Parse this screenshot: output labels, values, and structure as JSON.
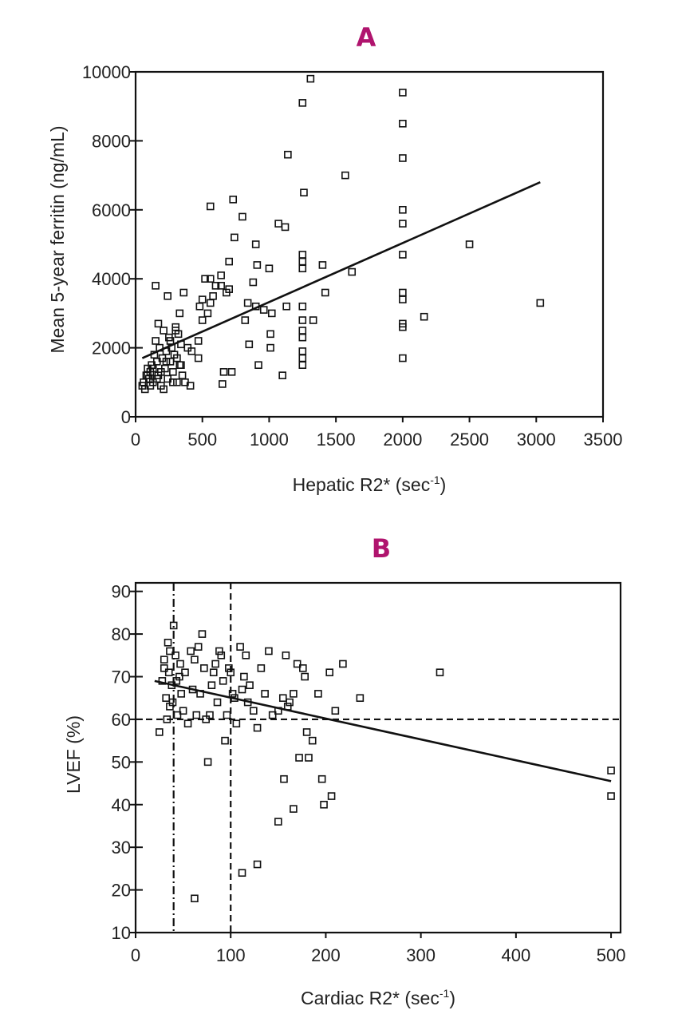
{
  "colors": {
    "panel_title": "#b0146e",
    "ink": "#111111"
  },
  "chart_data": [
    {
      "type": "scatter",
      "panel": "A",
      "title": "A",
      "xlabel": "Hepatic R2* (sec",
      "xlabel_sup": "-1",
      "xlabel_end": ")",
      "ylabel": "Mean 5-year ferritin (ng/mL)",
      "xlim": [
        0,
        3500
      ],
      "ylim": [
        0,
        10000
      ],
      "xticks": [
        0,
        500,
        1000,
        1500,
        2000,
        2500,
        3000,
        3500
      ],
      "yticks": [
        0,
        2000,
        4000,
        6000,
        8000,
        10000
      ],
      "grid": false,
      "fit_line": [
        [
          50,
          1700
        ],
        [
          3030,
          6800
        ]
      ],
      "points": [
        [
          50,
          900
        ],
        [
          60,
          1000
        ],
        [
          70,
          800
        ],
        [
          80,
          1200
        ],
        [
          90,
          1400
        ],
        [
          100,
          1100
        ],
        [
          110,
          1300
        ],
        [
          120,
          1500
        ],
        [
          130,
          1000
        ],
        [
          140,
          1800
        ],
        [
          150,
          2200
        ],
        [
          160,
          1600
        ],
        [
          170,
          1200
        ],
        [
          180,
          2000
        ],
        [
          190,
          900
        ],
        [
          200,
          1700
        ],
        [
          210,
          2500
        ],
        [
          220,
          1400
        ],
        [
          230,
          1900
        ],
        [
          240,
          1100
        ],
        [
          250,
          2300
        ],
        [
          260,
          1600
        ],
        [
          270,
          2000
        ],
        [
          280,
          1300
        ],
        [
          290,
          1800
        ],
        [
          300,
          2600
        ],
        [
          310,
          1000
        ],
        [
          320,
          2400
        ],
        [
          330,
          1500
        ],
        [
          340,
          2100
        ],
        [
          350,
          1200
        ],
        [
          360,
          3600
        ],
        [
          150,
          3800
        ],
        [
          170,
          2700
        ],
        [
          240,
          3500
        ],
        [
          300,
          2500
        ],
        [
          330,
          3000
        ],
        [
          390,
          2000
        ],
        [
          410,
          900
        ],
        [
          470,
          2200
        ],
        [
          480,
          3200
        ],
        [
          500,
          3400
        ],
        [
          520,
          4000
        ],
        [
          540,
          3000
        ],
        [
          560,
          4000
        ],
        [
          580,
          3500
        ],
        [
          640,
          3800
        ],
        [
          660,
          1300
        ],
        [
          650,
          950
        ],
        [
          700,
          4500
        ],
        [
          720,
          1300
        ],
        [
          740,
          5200
        ],
        [
          560,
          6100
        ],
        [
          730,
          6300
        ],
        [
          800,
          5800
        ],
        [
          840,
          3300
        ],
        [
          850,
          2100
        ],
        [
          880,
          3900
        ],
        [
          900,
          5000
        ],
        [
          910,
          4400
        ],
        [
          920,
          1500
        ],
        [
          1000,
          4300
        ],
        [
          1010,
          2000
        ],
        [
          1020,
          3000
        ],
        [
          1070,
          5600
        ],
        [
          1100,
          1200
        ],
        [
          1120,
          5500
        ],
        [
          1130,
          3200
        ],
        [
          1140,
          7600
        ],
        [
          1250,
          9100
        ],
        [
          1260,
          6500
        ],
        [
          1250,
          4700
        ],
        [
          1250,
          4500
        ],
        [
          1250,
          4300
        ],
        [
          1250,
          3200
        ],
        [
          1250,
          2800
        ],
        [
          1250,
          2500
        ],
        [
          1250,
          2300
        ],
        [
          1250,
          1900
        ],
        [
          1250,
          1700
        ],
        [
          1250,
          1500
        ],
        [
          1310,
          9800
        ],
        [
          1330,
          2800
        ],
        [
          1400,
          4400
        ],
        [
          1420,
          3600
        ],
        [
          1570,
          7000
        ],
        [
          1620,
          4200
        ],
        [
          2000,
          9400
        ],
        [
          2000,
          8500
        ],
        [
          2000,
          7500
        ],
        [
          2000,
          6000
        ],
        [
          2000,
          5600
        ],
        [
          2000,
          4700
        ],
        [
          2000,
          3600
        ],
        [
          2000,
          3400
        ],
        [
          2000,
          2700
        ],
        [
          2000,
          2600
        ],
        [
          2000,
          1700
        ],
        [
          2160,
          2900
        ],
        [
          2500,
          5000
        ],
        [
          3030,
          3300
        ],
        [
          90,
          1200
        ],
        [
          110,
          900
        ],
        [
          130,
          1400
        ],
        [
          160,
          1100
        ],
        [
          190,
          1300
        ],
        [
          210,
          800
        ],
        [
          230,
          1600
        ],
        [
          260,
          2200
        ],
        [
          280,
          1000
        ],
        [
          310,
          1700
        ],
        [
          340,
          1500
        ],
        [
          370,
          1000
        ],
        [
          420,
          1900
        ],
        [
          470,
          1700
        ],
        [
          500,
          2800
        ],
        [
          560,
          3300
        ],
        [
          600,
          3800
        ],
        [
          640,
          4100
        ],
        [
          680,
          3600
        ],
        [
          700,
          3700
        ],
        [
          820,
          2800
        ],
        [
          900,
          3200
        ],
        [
          960,
          3100
        ],
        [
          1010,
          2400
        ]
      ]
    },
    {
      "type": "scatter",
      "panel": "B",
      "title": "B",
      "xlabel": "Cardiac R2* (sec",
      "xlabel_sup": "-1",
      "xlabel_end": ")",
      "ylabel": "LVEF (%)",
      "xlim": [
        0,
        510
      ],
      "ylim": [
        10,
        92
      ],
      "xticks": [
        0,
        100,
        200,
        300,
        400,
        500
      ],
      "yticks": [
        10,
        20,
        30,
        40,
        50,
        60,
        70,
        80,
        90
      ],
      "grid": false,
      "hline_dashed": 60,
      "vline_dashdot": 40,
      "vline_dashed": 100,
      "fit_line": [
        [
          20,
          69
        ],
        [
          500,
          45.5
        ]
      ],
      "points": [
        [
          25,
          57
        ],
        [
          28,
          69
        ],
        [
          30,
          74
        ],
        [
          32,
          65
        ],
        [
          34,
          78
        ],
        [
          35,
          71
        ],
        [
          36,
          63
        ],
        [
          38,
          68
        ],
        [
          40,
          82
        ],
        [
          42,
          75
        ],
        [
          44,
          61
        ],
        [
          46,
          70
        ],
        [
          48,
          66
        ],
        [
          30,
          72
        ],
        [
          33,
          60
        ],
        [
          36,
          76
        ],
        [
          39,
          64
        ],
        [
          43,
          69
        ],
        [
          47,
          73
        ],
        [
          50,
          62
        ],
        [
          52,
          71
        ],
        [
          55,
          59
        ],
        [
          58,
          76
        ],
        [
          60,
          67
        ],
        [
          62,
          74
        ],
        [
          64,
          61
        ],
        [
          66,
          77
        ],
        [
          68,
          66
        ],
        [
          70,
          80
        ],
        [
          72,
          72
        ],
        [
          74,
          60
        ],
        [
          76,
          50
        ],
        [
          78,
          61
        ],
        [
          80,
          68
        ],
        [
          82,
          71
        ],
        [
          84,
          73
        ],
        [
          86,
          64
        ],
        [
          88,
          76
        ],
        [
          90,
          75
        ],
        [
          92,
          69
        ],
        [
          94,
          55
        ],
        [
          96,
          61
        ],
        [
          98,
          72
        ],
        [
          100,
          71
        ],
        [
          102,
          66
        ],
        [
          104,
          65
        ],
        [
          106,
          59
        ],
        [
          110,
          77
        ],
        [
          112,
          67
        ],
        [
          114,
          70
        ],
        [
          116,
          75
        ],
        [
          118,
          64
        ],
        [
          120,
          68
        ],
        [
          124,
          62
        ],
        [
          128,
          58
        ],
        [
          132,
          72
        ],
        [
          136,
          66
        ],
        [
          140,
          76
        ],
        [
          144,
          61
        ],
        [
          150,
          62
        ],
        [
          155,
          65
        ],
        [
          158,
          75
        ],
        [
          160,
          63
        ],
        [
          162,
          64
        ],
        [
          166,
          66
        ],
        [
          170,
          73
        ],
        [
          176,
          72
        ],
        [
          178,
          70
        ],
        [
          180,
          57
        ],
        [
          182,
          51
        ],
        [
          186,
          55
        ],
        [
          192,
          66
        ],
        [
          198,
          40
        ],
        [
          204,
          71
        ],
        [
          210,
          62
        ],
        [
          218,
          73
        ],
        [
          236,
          65
        ],
        [
          320,
          71
        ],
        [
          112,
          24
        ],
        [
          128,
          26
        ],
        [
          150,
          36
        ],
        [
          156,
          46
        ],
        [
          166,
          39
        ],
        [
          172,
          51
        ],
        [
          196,
          46
        ],
        [
          206,
          42
        ],
        [
          62,
          18
        ],
        [
          500,
          48
        ],
        [
          500,
          42
        ]
      ]
    }
  ]
}
